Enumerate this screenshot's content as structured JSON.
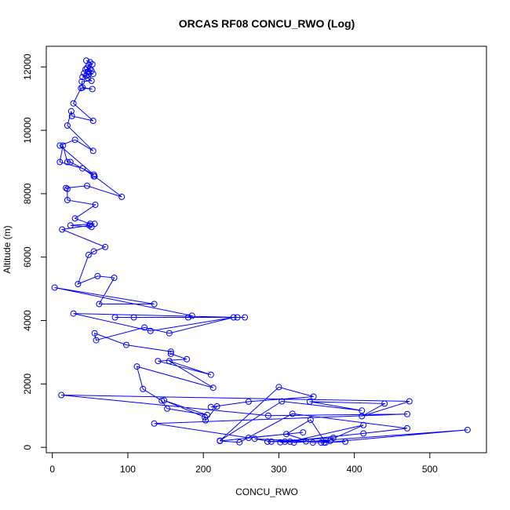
{
  "chart_data": {
    "type": "line",
    "title": "ORCAS RF08 CONCU_RWO (Log)",
    "xlabel": "CONCU_RWO",
    "ylabel": "Altitude (m)",
    "xlim": [
      -8,
      575
    ],
    "ylim": [
      -170,
      12650
    ],
    "xticks": [
      0,
      100,
      200,
      300,
      400,
      500
    ],
    "yticks": [
      0,
      2000,
      4000,
      6000,
      8000,
      10000,
      12000
    ],
    "grid": false,
    "legend": "none",
    "marker": "open-circle",
    "series_color": "#0000ff",
    "series": [
      {
        "x": [
          45,
          50,
          53,
          48,
          46,
          50,
          44,
          52,
          48,
          42,
          54,
          48,
          45,
          40,
          47,
          52,
          39,
          40,
          53,
          38,
          28,
          54,
          26,
          25,
          20,
          54,
          30,
          10,
          55,
          24,
          20,
          14,
          10,
          40,
          55,
          56,
          92,
          46,
          18,
          20,
          20,
          57,
          30,
          50,
          56,
          24,
          52,
          49,
          13,
          70,
          55,
          48,
          34,
          60,
          82,
          62,
          135,
          3,
          185,
          180,
          83,
          108,
          255,
          245,
          28,
          130,
          240,
          155,
          122,
          58,
          56,
          98,
          157,
          157,
          178,
          140,
          210,
          155,
          213,
          112,
          120,
          145,
          152,
          205,
          148,
          202,
          203,
          218,
          210,
          260,
          346,
          300,
          222,
          304,
          410,
          341,
          440,
          410,
          473,
          12,
          286,
          470,
          135,
          260,
          332,
          222,
          248,
          318,
          470,
          412,
          308,
          285,
          372,
          290,
          268,
          336,
          320,
          550,
          360,
          412,
          315,
          302,
          368,
          356,
          388,
          345,
          310,
          342,
          362
        ],
        "y": [
          12200,
          12150,
          12080,
          12050,
          11970,
          11940,
          11920,
          11880,
          11850,
          11800,
          11780,
          11760,
          11720,
          11680,
          11650,
          11560,
          11540,
          11350,
          11300,
          11330,
          10850,
          10300,
          10450,
          10600,
          10150,
          9350,
          9700,
          9520,
          8600,
          9000,
          9000,
          9520,
          9000,
          8800,
          8550,
          8550,
          7900,
          8250,
          8180,
          8150,
          7800,
          7650,
          7220,
          7050,
          7050,
          7000,
          6950,
          7000,
          6870,
          6320,
          6180,
          6070,
          5150,
          5400,
          5350,
          4520,
          4520,
          5040,
          4150,
          4100,
          4100,
          4100,
          4100,
          4100,
          4220,
          3670,
          4100,
          3600,
          3780,
          3380,
          3600,
          3230,
          3020,
          2950,
          2780,
          2720,
          2290,
          2720,
          1880,
          2550,
          1840,
          1470,
          1220,
          1020,
          1480,
          950,
          850,
          1290,
          1270,
          1440,
          1600,
          1900,
          210,
          1450,
          1160,
          1440,
          1380,
          980,
          1450,
          1650,
          1000,
          1050,
          750,
          300,
          470,
          200,
          160,
          1060,
          600,
          440,
          180,
          180,
          300,
          180,
          270,
          190,
          150,
          550,
          150,
          700,
          180,
          160,
          200,
          150,
          180,
          150,
          420,
          870,
          150
        ]
      }
    ]
  }
}
